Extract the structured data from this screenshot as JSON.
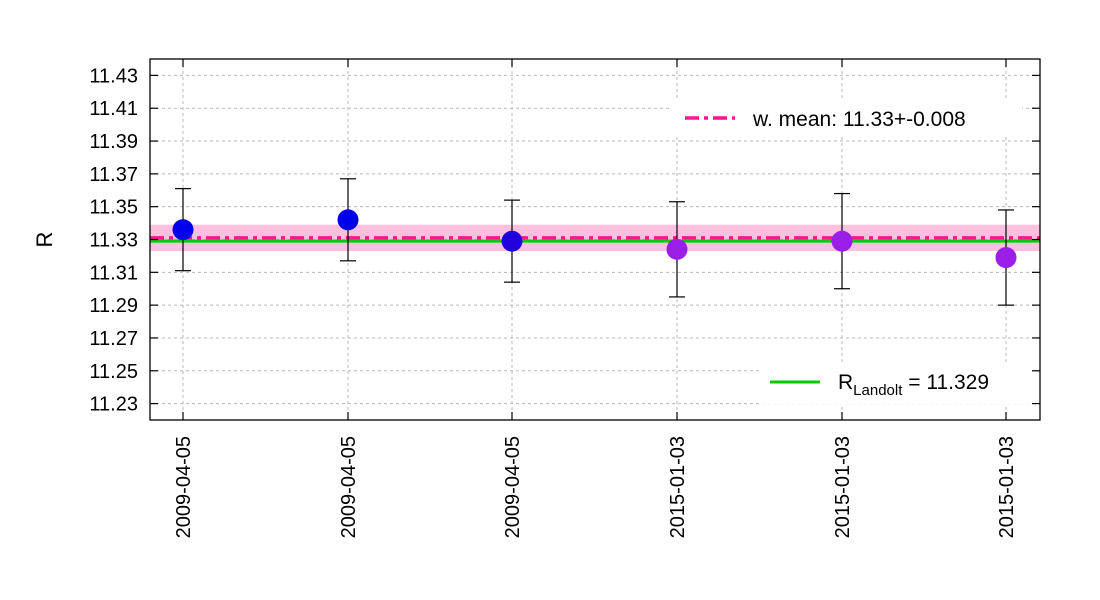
{
  "chart_data": {
    "type": "scatter",
    "title": "",
    "xlabel": "",
    "ylabel": "R",
    "ylim": [
      11.22,
      11.44
    ],
    "yticks": [
      "11.23",
      "11.25",
      "11.27",
      "11.29",
      "11.31",
      "11.33",
      "11.35",
      "11.37",
      "11.39",
      "11.41",
      "11.43"
    ],
    "categories": [
      "2009-04-05",
      "2009-04-05",
      "2009-04-05",
      "2015-01-03",
      "2015-01-03",
      "2015-01-03"
    ],
    "points": [
      {
        "category": "2009-04-05",
        "value": 11.336,
        "err_low": 11.311,
        "err_high": 11.361
      },
      {
        "category": "2009-04-05",
        "value": 11.342,
        "err_low": 11.317,
        "err_high": 11.367
      },
      {
        "category": "2009-04-05",
        "value": 11.329,
        "err_low": 11.304,
        "err_high": 11.354
      },
      {
        "category": "2015-01-03",
        "value": 11.324,
        "err_low": 11.295,
        "err_high": 11.353
      },
      {
        "category": "2015-01-03",
        "value": 11.329,
        "err_low": 11.3,
        "err_high": 11.358
      },
      {
        "category": "2015-01-03",
        "value": 11.319,
        "err_low": 11.29,
        "err_high": 11.348
      }
    ],
    "point_colors": [
      "#0000ee",
      "#0000ee",
      "#2200dd",
      "#9a1ee8",
      "#9a1ee8",
      "#9a1ee8"
    ],
    "weighted_mean": {
      "value": 11.331,
      "band_low": 11.323,
      "band_high": 11.339,
      "label": "w. mean: 11.33+-0.008",
      "color": "#ff1493",
      "band_color": "#ffc0e0"
    },
    "reference": {
      "value": 11.329,
      "label_main": "R",
      "label_sub": "Landolt",
      "label_rest": " = 11.329",
      "color": "#00cc00"
    },
    "grid": true,
    "legend_placement": "top-right and bottom-right"
  }
}
